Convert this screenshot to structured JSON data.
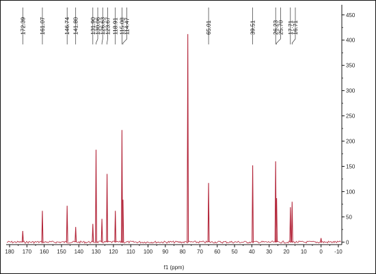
{
  "chart_data": {
    "type": "line",
    "xlabel": "f1 (ppm)",
    "ylabel": "",
    "xlim": [
      182,
      -12
    ],
    "ylim": [
      -5,
      470
    ],
    "x_reversed": true,
    "y_axis_position": "right",
    "colors": {
      "peaks": "#b3263a",
      "label_lines": "#333333",
      "axis": "#111111"
    },
    "x_ticks": [
      180,
      170,
      160,
      150,
      140,
      130,
      120,
      110,
      100,
      90,
      80,
      70,
      60,
      50,
      40,
      30,
      20,
      10,
      0,
      -10
    ],
    "x_tick_labels": [
      "180",
      "170",
      "160",
      "150",
      "140",
      "130",
      "120",
      "110",
      "100",
      "90",
      "80",
      "70",
      "60",
      "50",
      "40",
      "30",
      "20",
      "10",
      "0",
      "-10"
    ],
    "y_ticks": [
      0,
      50,
      100,
      150,
      200,
      250,
      300,
      350,
      400,
      450
    ],
    "y_tick_labels": [
      "0",
      "50",
      "100",
      "150",
      "200",
      "250",
      "300",
      "350",
      "400",
      "450"
    ],
    "peak_labels": [
      "172.39",
      "161.07",
      "146.74",
      "141.80",
      "131.90",
      "130.06",
      "126.63",
      "123.67",
      "118.91",
      "115.08",
      "114.47",
      "65.01",
      "39.51",
      "26.23",
      "25.70",
      "17.71",
      "16.71"
    ],
    "peaks": [
      {
        "x": 172.39,
        "y": 22
      },
      {
        "x": 161.07,
        "y": 62
      },
      {
        "x": 146.74,
        "y": 72
      },
      {
        "x": 141.8,
        "y": 30
      },
      {
        "x": 131.9,
        "y": 36
      },
      {
        "x": 130.06,
        "y": 183
      },
      {
        "x": 126.63,
        "y": 46
      },
      {
        "x": 123.67,
        "y": 135
      },
      {
        "x": 118.91,
        "y": 62
      },
      {
        "x": 115.08,
        "y": 222
      },
      {
        "x": 114.47,
        "y": 84
      },
      {
        "x": 77.0,
        "y": 412
      },
      {
        "x": 65.01,
        "y": 117
      },
      {
        "x": 39.51,
        "y": 152
      },
      {
        "x": 26.23,
        "y": 160
      },
      {
        "x": 25.7,
        "y": 87
      },
      {
        "x": 17.71,
        "y": 69
      },
      {
        "x": 16.71,
        "y": 80
      },
      {
        "x": 0.0,
        "y": 8
      }
    ]
  }
}
